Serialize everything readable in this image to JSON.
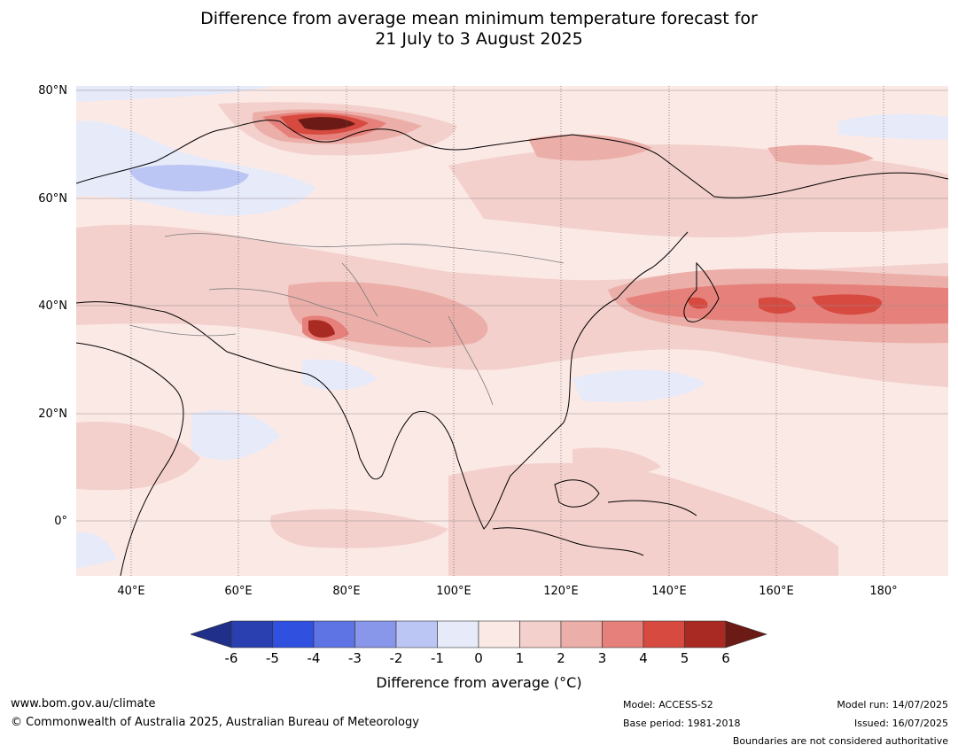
{
  "title": {
    "line1": "Difference from average mean minimum temperature forecast for",
    "line2": "21 July to 3 August 2025"
  },
  "map": {
    "lat_labels": [
      "80°N",
      "60°N",
      "40°N",
      "20°N",
      "0°"
    ],
    "lon_labels": [
      "40°E",
      "60°E",
      "80°E",
      "100°E",
      "120°E",
      "140°E",
      "160°E",
      "180°"
    ],
    "lat_range": [
      -10,
      80
    ],
    "lon_range": [
      30,
      192
    ]
  },
  "colorbar": {
    "ticks": [
      "-6",
      "-5",
      "-4",
      "-3",
      "-2",
      "-1",
      "0",
      "1",
      "2",
      "3",
      "4",
      "5",
      "6"
    ],
    "colors": [
      "#1f2f8a",
      "#2a3fb0",
      "#3050e0",
      "#5f74e4",
      "#8897ea",
      "#bcc6f4",
      "#e6eaf9",
      "#fbe9e6",
      "#f3d0cb",
      "#ecaea8",
      "#e6807a",
      "#d64a40",
      "#a82a22",
      "#6b1a16"
    ],
    "label": "Difference from average (°C)"
  },
  "footer": {
    "website": "www.bom.gov.au/climate",
    "copyright": "© Commonwealth of Australia 2025, Australian Bureau of Meteorology",
    "model": "Model: ACCESS-S2",
    "base_period": "Base period: 1981-2018",
    "model_run": "Model run: 14/07/2025",
    "issued": "Issued: 16/07/2025",
    "disclaimer": "Boundaries are not considered authoritative"
  }
}
